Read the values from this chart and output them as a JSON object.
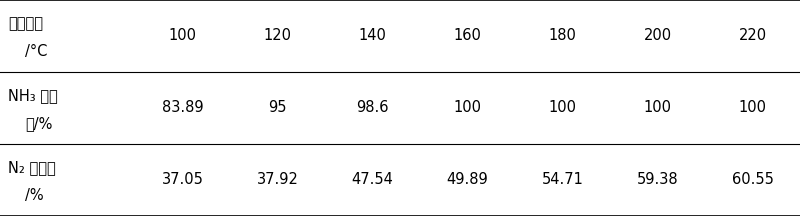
{
  "col_headers": [
    "100",
    "120",
    "140",
    "160",
    "180",
    "200",
    "220"
  ],
  "row_label_line1": [
    "反应温度",
    "NH₃ 转化",
    "N₂ 选择率"
  ],
  "row_label_line2": [
    "/°C",
    "率/%",
    "/%"
  ],
  "data": [
    [
      "100",
      "120",
      "140",
      "160",
      "180",
      "200",
      "220"
    ],
    [
      "83.89",
      "95",
      "98.6",
      "100",
      "100",
      "100",
      "100"
    ],
    [
      "37.05",
      "37.92",
      "47.54",
      "49.89",
      "54.71",
      "59.38",
      "60.55"
    ]
  ],
  "bg_color": "#ffffff",
  "text_color": "#000000",
  "font_size": 10.5
}
